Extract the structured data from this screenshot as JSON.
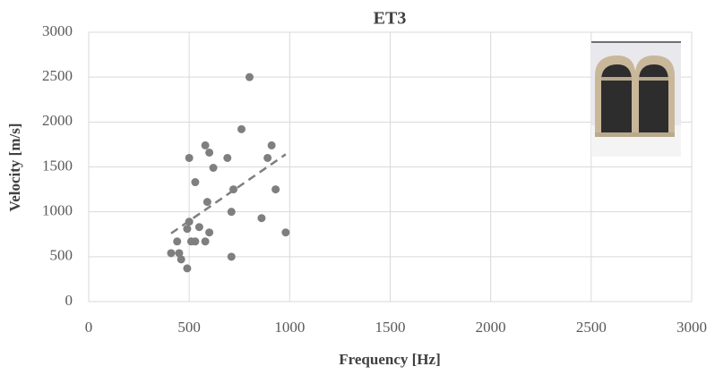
{
  "chart_data": {
    "type": "scatter",
    "title": "ET3",
    "x_label": "Frequency [Hz]",
    "y_label": "Velocity [m/s]",
    "xlim": [
      0,
      3000
    ],
    "ylim": [
      0,
      3000
    ],
    "xticks": [
      0,
      500,
      1000,
      1500,
      2000,
      2500,
      3000
    ],
    "yticks": [
      0,
      500,
      1000,
      1500,
      2000,
      2500,
      3000
    ],
    "grid": true,
    "series": [
      {
        "name": "ET3",
        "color": "#7f7f7f",
        "x": [
          410,
          440,
          450,
          460,
          490,
          490,
          500,
          500,
          510,
          530,
          530,
          550,
          580,
          580,
          590,
          600,
          600,
          620,
          690,
          710,
          710,
          720,
          760,
          800,
          860,
          890,
          910,
          930,
          980
        ],
        "values": [
          540,
          670,
          540,
          470,
          370,
          810,
          1600,
          890,
          670,
          670,
          1330,
          830,
          1740,
          670,
          1110,
          770,
          1660,
          1490,
          1600,
          1000,
          500,
          1250,
          1920,
          2500,
          930,
          1600,
          1740,
          1250,
          770
        ]
      }
    ],
    "trendline": {
      "color": "#7f7f7f",
      "x": [
        410,
        980
      ],
      "values": [
        760,
        1640
      ]
    }
  }
}
